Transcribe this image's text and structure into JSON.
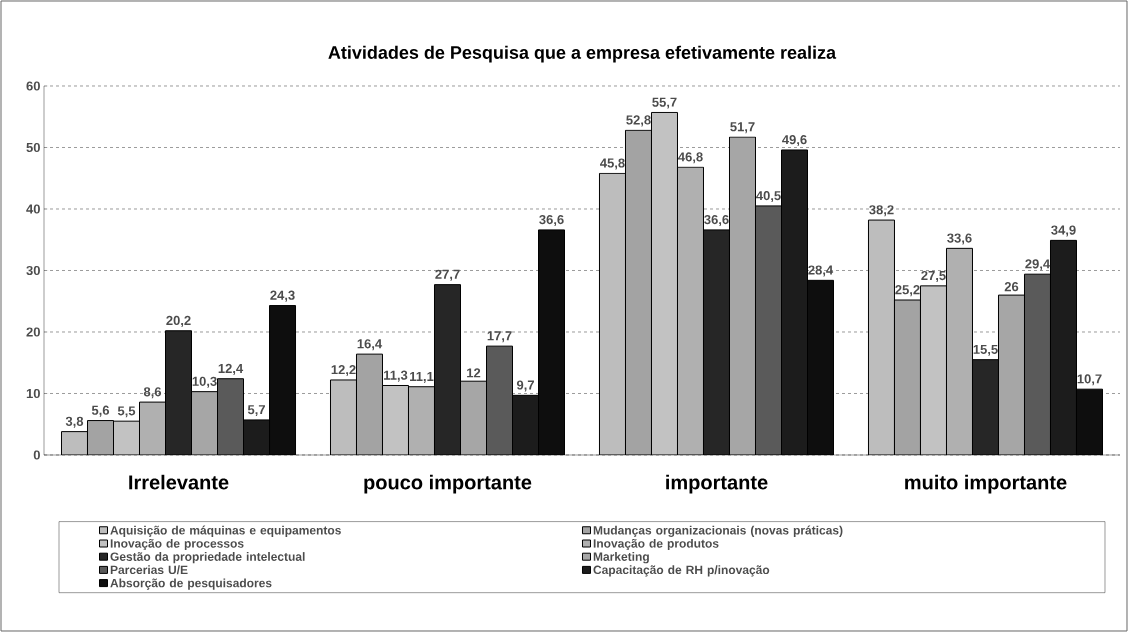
{
  "chart_data": {
    "type": "bar",
    "title": "Atividades de Pesquisa que a empresa efetivamente realiza",
    "categories": [
      "Irrelevante",
      "pouco importante",
      "importante",
      "muito importante"
    ],
    "series": [
      {
        "name": "Aquisição de máquinas e equipamentos",
        "color": "#bdbdbd",
        "values": [
          3.8,
          12.2,
          45.8,
          38.2
        ],
        "value_labels": [
          "3,8",
          "12,2",
          "45,8",
          "38,2"
        ]
      },
      {
        "name": "Mudanças organizacionais (novas práticas)",
        "color": "#a3a3a3",
        "values": [
          5.6,
          16.4,
          52.8,
          25.2
        ],
        "value_labels": [
          "5,6",
          "16,4",
          "52,8",
          "25,2"
        ]
      },
      {
        "name": "Inovação de processos",
        "color": "#c2c2c2",
        "values": [
          5.5,
          11.3,
          55.7,
          27.5
        ],
        "value_labels": [
          "5,5",
          "11,3",
          "55,7",
          "27,5"
        ]
      },
      {
        "name": "Inovação de produtos",
        "color": "#b0b0b0",
        "values": [
          8.6,
          11.1,
          46.8,
          33.6
        ],
        "value_labels": [
          "8,6",
          "11,1",
          "46,8",
          "33,6"
        ]
      },
      {
        "name": "Gestão da propriedade intelectual",
        "color": "#262626",
        "values": [
          20.2,
          27.7,
          36.6,
          15.5
        ],
        "value_labels": [
          "20,2",
          "27,7",
          "36,6",
          "15,5"
        ]
      },
      {
        "name": "Marketing",
        "color": "#a6a6a6",
        "values": [
          10.3,
          12,
          51.7,
          26
        ],
        "value_labels": [
          "10,3",
          "12",
          "51,7",
          "26"
        ]
      },
      {
        "name": "Parcerias U/E",
        "color": "#5a5a5a",
        "values": [
          12.4,
          17.7,
          40.5,
          29.4
        ],
        "value_labels": [
          "12,4",
          "17,7",
          "40,5",
          "29,4"
        ]
      },
      {
        "name": "Capacitação de RH p/inovação",
        "color": "#1c1c1c",
        "values": [
          5.7,
          9.7,
          49.6,
          34.9
        ],
        "value_labels": [
          "5,7",
          "9,7",
          "49,6",
          "34,9"
        ]
      },
      {
        "name": "Absorção de pesquisadores",
        "color": "#0e0e0e",
        "values": [
          24.3,
          36.6,
          28.4,
          10.7
        ],
        "value_labels": [
          "24,3",
          "36,6",
          "28,4",
          "10,7"
        ]
      }
    ],
    "ylim": [
      0,
      60
    ],
    "yticks": [
      0,
      10,
      20,
      30,
      40,
      50,
      60
    ],
    "grid": "y",
    "legend": "bottom"
  }
}
